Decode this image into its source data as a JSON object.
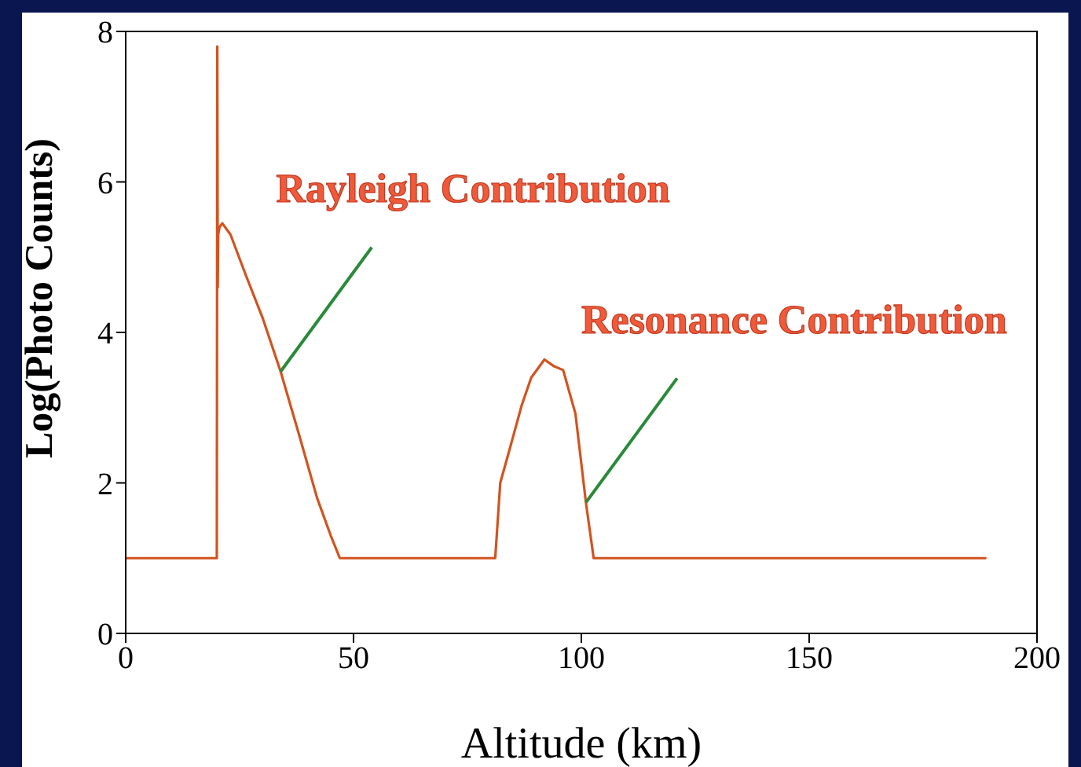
{
  "chart_data": {
    "type": "line",
    "ylabel": "Log(Photo Counts)",
    "xlabel": "Altitude (km)",
    "x": [
      0,
      20,
      20.1,
      20.2,
      20.3,
      20.6,
      21.2,
      23,
      26.3,
      30,
      34,
      38,
      42,
      45,
      47,
      60,
      81.1,
      82.2,
      84.5,
      86.9,
      89,
      91.9,
      94,
      96,
      98.7,
      101,
      102.7,
      120,
      150,
      188.9
    ],
    "series": [
      {
        "color": "#d2531f",
        "values": [
          1,
          1,
          7.8,
          4.6,
          5.3,
          5.4,
          5.45,
          5.3,
          4.77,
          4.2,
          3.48,
          2.65,
          1.8,
          1.3,
          1,
          1,
          1,
          2,
          2.5,
          3.03,
          3.4,
          3.64,
          3.55,
          3.5,
          2.92,
          1.74,
          1,
          1,
          1,
          1
        ]
      }
    ],
    "xlim": [
      0,
      200
    ],
    "xticks": [
      0,
      50,
      100,
      150,
      200
    ],
    "ylim": [
      0,
      8
    ],
    "yticks": [
      0,
      2,
      4,
      6,
      8
    ],
    "grid": false,
    "legend": false,
    "marker": "none",
    "line_style": "solid",
    "annotations": [
      {
        "text": "Rayleigh Contribution",
        "x": 34,
        "y": 3.48
      },
      {
        "text": "Resonance Contribution",
        "x": 101,
        "y": 1.74
      }
    ]
  }
}
